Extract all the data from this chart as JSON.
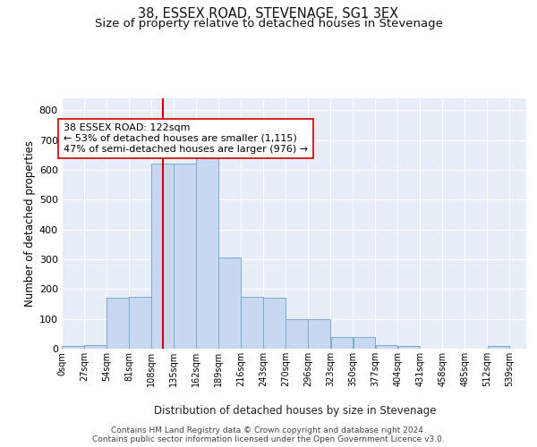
{
  "title": "38, ESSEX ROAD, STEVENAGE, SG1 3EX",
  "subtitle": "Size of property relative to detached houses in Stevenage",
  "xlabel": "Distribution of detached houses by size in Stevenage",
  "ylabel": "Number of detached properties",
  "bin_labels": [
    "0sqm",
    "27sqm",
    "54sqm",
    "81sqm",
    "108sqm",
    "135sqm",
    "162sqm",
    "189sqm",
    "216sqm",
    "243sqm",
    "270sqm",
    "296sqm",
    "323sqm",
    "350sqm",
    "377sqm",
    "404sqm",
    "431sqm",
    "458sqm",
    "485sqm",
    "512sqm",
    "539sqm"
  ],
  "bar_heights": [
    8,
    12,
    170,
    175,
    620,
    620,
    650,
    305,
    173,
    172,
    98,
    98,
    40,
    40,
    13,
    8,
    0,
    0,
    0,
    8,
    0
  ],
  "bar_color": "#c8d8f0",
  "bar_edge_color": "#7aabcc",
  "background_color": "#e8eef8",
  "grid_color": "#ffffff",
  "vline_x": 122,
  "vline_color": "#cc0000",
  "annotation_text": "38 ESSEX ROAD: 122sqm\n← 53% of detached houses are smaller (1,115)\n47% of semi-detached houses are larger (976) →",
  "annotation_box_color": "#ffffff",
  "annotation_box_edge": "#cc0000",
  "ylim": [
    0,
    840
  ],
  "yticks": [
    0,
    100,
    200,
    300,
    400,
    500,
    600,
    700,
    800
  ],
  "footer_text": "Contains HM Land Registry data © Crown copyright and database right 2024.\nContains public sector information licensed under the Open Government Licence v3.0.",
  "title_fontsize": 10.5,
  "subtitle_fontsize": 9.5,
  "annotation_fontsize": 8,
  "footer_fontsize": 6.5,
  "bin_width": 27
}
